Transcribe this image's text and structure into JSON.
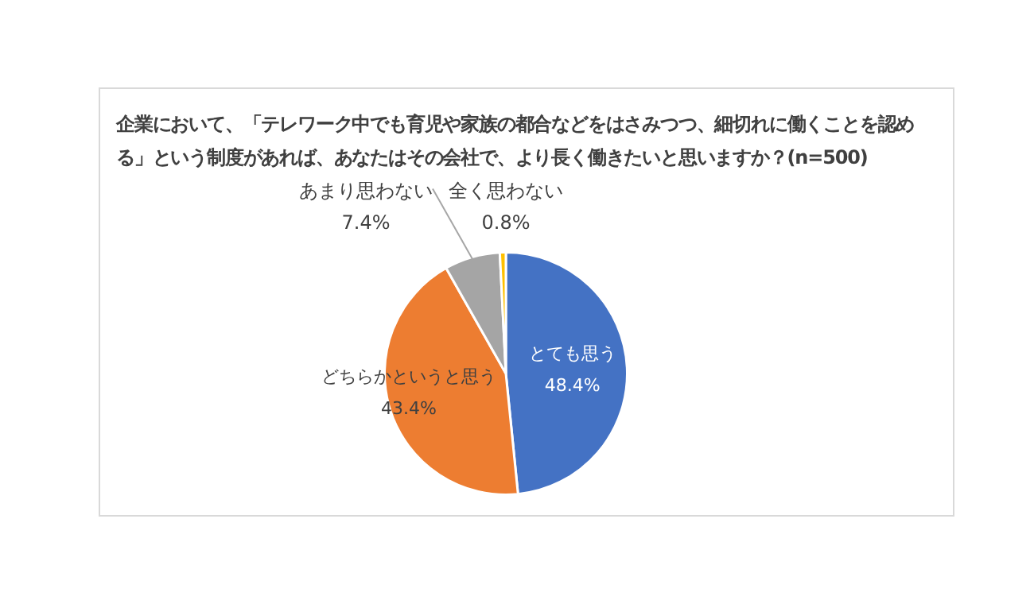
{
  "chart_data": {
    "type": "pie",
    "title": "企業において、「テレワーク中でも育児や家族の都合などをはさみつつ、細切れに働くことを認める」という制度があれば、あなたはその会社で、より長く働きたいと思いますか？(n=500)",
    "categories": [
      "とても思う",
      "どちらかというと思う",
      "あまり思わない",
      "全く思わない"
    ],
    "values": [
      48.4,
      43.4,
      7.4,
      0.8
    ],
    "colors": [
      "#4472c4",
      "#ed7d31",
      "#a5a5a5",
      "#ffc000"
    ],
    "value_labels": [
      "48.4%",
      "43.4%",
      "7.4%",
      "0.8%"
    ]
  }
}
